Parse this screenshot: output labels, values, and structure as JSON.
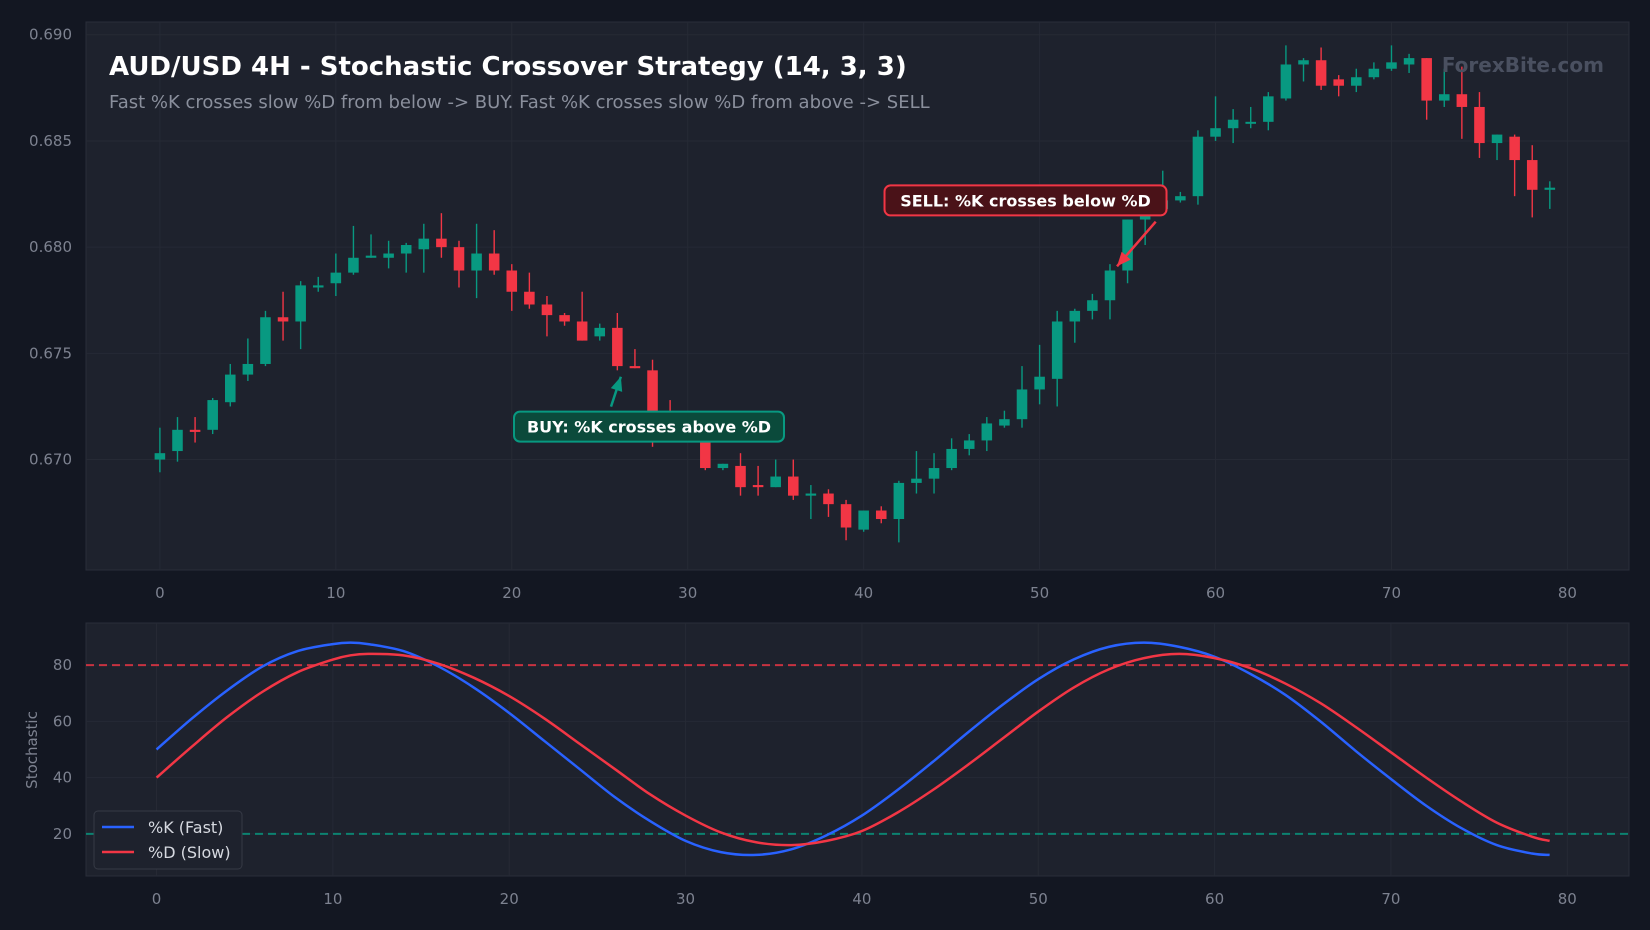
{
  "colors": {
    "background": "#131722",
    "panel": "#1e222d",
    "grid": "#262a35",
    "bullish": "#089981",
    "bearish": "#f23645",
    "k_line": "#2962ff",
    "d_line": "#f23645",
    "overbought": "#f23645",
    "oversold": "#089981"
  },
  "chart_data": [
    {
      "type": "candlestick",
      "title": "AUD/USD 4H - Stochastic Crossover Strategy (14, 3, 3)",
      "subtitle": "Fast %K crosses slow %D from below -> BUY. Fast %K crosses slow %D from above -> SELL",
      "watermark": "ForexBite.com",
      "xlim": [
        -4.2,
        83.5
      ],
      "ylim": [
        0.6648,
        0.6906
      ],
      "xticks": [
        0,
        10,
        20,
        30,
        40,
        50,
        60,
        70,
        80
      ],
      "yticks": [
        0.67,
        0.675,
        0.68,
        0.685,
        0.69
      ],
      "ytick_labels": [
        "0.670",
        "0.675",
        "0.680",
        "0.685",
        "0.690"
      ],
      "grid": true,
      "candles": [
        {
          "o": 0.67,
          "h": 0.6715,
          "l": 0.6694,
          "c": 0.6703
        },
        {
          "o": 0.6704,
          "h": 0.672,
          "l": 0.6699,
          "c": 0.6714
        },
        {
          "o": 0.6714,
          "h": 0.672,
          "l": 0.6708,
          "c": 0.6713
        },
        {
          "o": 0.6714,
          "h": 0.6729,
          "l": 0.6712,
          "c": 0.6728
        },
        {
          "o": 0.6727,
          "h": 0.6745,
          "l": 0.6725,
          "c": 0.674
        },
        {
          "o": 0.674,
          "h": 0.6757,
          "l": 0.6737,
          "c": 0.6745
        },
        {
          "o": 0.6745,
          "h": 0.677,
          "l": 0.6744,
          "c": 0.6767
        },
        {
          "o": 0.6767,
          "h": 0.6779,
          "l": 0.6756,
          "c": 0.6765
        },
        {
          "o": 0.6765,
          "h": 0.6784,
          "l": 0.6752,
          "c": 0.6782
        },
        {
          "o": 0.6781,
          "h": 0.6786,
          "l": 0.6779,
          "c": 0.6782
        },
        {
          "o": 0.6783,
          "h": 0.6797,
          "l": 0.6777,
          "c": 0.6788
        },
        {
          "o": 0.6788,
          "h": 0.681,
          "l": 0.6787,
          "c": 0.6795
        },
        {
          "o": 0.6795,
          "h": 0.6806,
          "l": 0.6795,
          "c": 0.6796
        },
        {
          "o": 0.6795,
          "h": 0.6803,
          "l": 0.679,
          "c": 0.6797
        },
        {
          "o": 0.6797,
          "h": 0.6802,
          "l": 0.6788,
          "c": 0.6801
        },
        {
          "o": 0.6799,
          "h": 0.6811,
          "l": 0.6788,
          "c": 0.6804
        },
        {
          "o": 0.6804,
          "h": 0.6816,
          "l": 0.6795,
          "c": 0.68
        },
        {
          "o": 0.68,
          "h": 0.6803,
          "l": 0.6781,
          "c": 0.6789
        },
        {
          "o": 0.6789,
          "h": 0.6811,
          "l": 0.6776,
          "c": 0.6797
        },
        {
          "o": 0.6797,
          "h": 0.6808,
          "l": 0.6787,
          "c": 0.6789
        },
        {
          "o": 0.6789,
          "h": 0.6792,
          "l": 0.677,
          "c": 0.6779
        },
        {
          "o": 0.6779,
          "h": 0.6788,
          "l": 0.6771,
          "c": 0.6773
        },
        {
          "o": 0.6773,
          "h": 0.6777,
          "l": 0.6758,
          "c": 0.6768
        },
        {
          "o": 0.6768,
          "h": 0.6769,
          "l": 0.6763,
          "c": 0.6765
        },
        {
          "o": 0.6765,
          "h": 0.6779,
          "l": 0.6756,
          "c": 0.6756
        },
        {
          "o": 0.6758,
          "h": 0.6764,
          "l": 0.6756,
          "c": 0.6762
        },
        {
          "o": 0.6762,
          "h": 0.6769,
          "l": 0.6742,
          "c": 0.6744
        },
        {
          "o": 0.6744,
          "h": 0.6752,
          "l": 0.6743,
          "c": 0.6743
        },
        {
          "o": 0.6742,
          "h": 0.6747,
          "l": 0.6706,
          "c": 0.672
        },
        {
          "o": 0.6721,
          "h": 0.6728,
          "l": 0.6719,
          "c": 0.672
        },
        {
          "o": 0.672,
          "h": 0.6721,
          "l": 0.6711,
          "c": 0.6711
        },
        {
          "o": 0.6711,
          "h": 0.6722,
          "l": 0.6695,
          "c": 0.6696
        },
        {
          "o": 0.6696,
          "h": 0.6698,
          "l": 0.6695,
          "c": 0.6698
        },
        {
          "o": 0.6697,
          "h": 0.6703,
          "l": 0.6683,
          "c": 0.6687
        },
        {
          "o": 0.6688,
          "h": 0.6697,
          "l": 0.6683,
          "c": 0.6687
        },
        {
          "o": 0.6687,
          "h": 0.67,
          "l": 0.6687,
          "c": 0.6692
        },
        {
          "o": 0.6692,
          "h": 0.67,
          "l": 0.6681,
          "c": 0.6683
        },
        {
          "o": 0.6683,
          "h": 0.6688,
          "l": 0.6672,
          "c": 0.6684
        },
        {
          "o": 0.6684,
          "h": 0.6686,
          "l": 0.6673,
          "c": 0.6679
        },
        {
          "o": 0.6679,
          "h": 0.6681,
          "l": 0.6662,
          "c": 0.6668
        },
        {
          "o": 0.6667,
          "h": 0.6676,
          "l": 0.6666,
          "c": 0.6676
        },
        {
          "o": 0.6676,
          "h": 0.6678,
          "l": 0.667,
          "c": 0.6672
        },
        {
          "o": 0.6672,
          "h": 0.669,
          "l": 0.6661,
          "c": 0.6689
        },
        {
          "o": 0.6689,
          "h": 0.6704,
          "l": 0.6684,
          "c": 0.6691
        },
        {
          "o": 0.6691,
          "h": 0.6703,
          "l": 0.6684,
          "c": 0.6696
        },
        {
          "o": 0.6696,
          "h": 0.671,
          "l": 0.6695,
          "c": 0.6705
        },
        {
          "o": 0.6705,
          "h": 0.6712,
          "l": 0.6702,
          "c": 0.6709
        },
        {
          "o": 0.6709,
          "h": 0.672,
          "l": 0.6704,
          "c": 0.6717
        },
        {
          "o": 0.6716,
          "h": 0.6723,
          "l": 0.6715,
          "c": 0.6719
        },
        {
          "o": 0.6719,
          "h": 0.6744,
          "l": 0.6715,
          "c": 0.6733
        },
        {
          "o": 0.6733,
          "h": 0.6754,
          "l": 0.6726,
          "c": 0.6739
        },
        {
          "o": 0.6738,
          "h": 0.677,
          "l": 0.6725,
          "c": 0.6765
        },
        {
          "o": 0.6765,
          "h": 0.6771,
          "l": 0.6755,
          "c": 0.677
        },
        {
          "o": 0.677,
          "h": 0.6778,
          "l": 0.6766,
          "c": 0.6775
        },
        {
          "o": 0.6775,
          "h": 0.6792,
          "l": 0.6766,
          "c": 0.6789
        },
        {
          "o": 0.6789,
          "h": 0.6813,
          "l": 0.6783,
          "c": 0.6813
        },
        {
          "o": 0.6813,
          "h": 0.6823,
          "l": 0.6801,
          "c": 0.6819
        },
        {
          "o": 0.6818,
          "h": 0.6836,
          "l": 0.6818,
          "c": 0.6822
        },
        {
          "o": 0.6822,
          "h": 0.6826,
          "l": 0.6821,
          "c": 0.6824
        },
        {
          "o": 0.6824,
          "h": 0.6855,
          "l": 0.682,
          "c": 0.6852
        },
        {
          "o": 0.6852,
          "h": 0.6871,
          "l": 0.685,
          "c": 0.6856
        },
        {
          "o": 0.6856,
          "h": 0.6865,
          "l": 0.6849,
          "c": 0.686
        },
        {
          "o": 0.6859,
          "h": 0.6866,
          "l": 0.6856,
          "c": 0.6859
        },
        {
          "o": 0.6859,
          "h": 0.6873,
          "l": 0.6855,
          "c": 0.6871
        },
        {
          "o": 0.687,
          "h": 0.6895,
          "l": 0.6869,
          "c": 0.6886
        },
        {
          "o": 0.6886,
          "h": 0.6889,
          "l": 0.6878,
          "c": 0.6888
        },
        {
          "o": 0.6888,
          "h": 0.6894,
          "l": 0.6874,
          "c": 0.6876
        },
        {
          "o": 0.6879,
          "h": 0.6881,
          "l": 0.6871,
          "c": 0.6876
        },
        {
          "o": 0.6876,
          "h": 0.6884,
          "l": 0.6873,
          "c": 0.688
        },
        {
          "o": 0.688,
          "h": 0.6887,
          "l": 0.6879,
          "c": 0.6884
        },
        {
          "o": 0.6884,
          "h": 0.6895,
          "l": 0.6883,
          "c": 0.6887
        },
        {
          "o": 0.6886,
          "h": 0.6891,
          "l": 0.6882,
          "c": 0.6889
        },
        {
          "o": 0.6889,
          "h": 0.6889,
          "l": 0.686,
          "c": 0.6869
        },
        {
          "o": 0.6869,
          "h": 0.6884,
          "l": 0.6866,
          "c": 0.6872
        },
        {
          "o": 0.6872,
          "h": 0.6885,
          "l": 0.6851,
          "c": 0.6866
        },
        {
          "o": 0.6866,
          "h": 0.6873,
          "l": 0.6842,
          "c": 0.6849
        },
        {
          "o": 0.6849,
          "h": 0.6853,
          "l": 0.6841,
          "c": 0.6853
        },
        {
          "o": 0.6852,
          "h": 0.6853,
          "l": 0.6824,
          "c": 0.6841
        },
        {
          "o": 0.6841,
          "h": 0.6848,
          "l": 0.6814,
          "c": 0.6827
        },
        {
          "o": 0.6827,
          "h": 0.6831,
          "l": 0.6818,
          "c": 0.6828
        }
      ],
      "annotations": [
        {
          "text": "BUY: %K crosses above %D",
          "kind": "buy",
          "x": 27.8,
          "y": 0.67155,
          "arrow_to": [
            26.2,
            0.6739
          ]
        },
        {
          "text": "SELL: %K crosses below %D",
          "kind": "sell",
          "x": 49.2,
          "y": 0.6822,
          "arrow_to": [
            54.4,
            0.6791
          ],
          "arrow_from": [
            56.6,
            0.6812
          ]
        }
      ]
    },
    {
      "type": "line",
      "ylabel": "Stochastic",
      "xlim": [
        -4,
        83.5
      ],
      "ylim": [
        5,
        95
      ],
      "xticks": [
        0,
        10,
        20,
        30,
        40,
        50,
        60,
        70,
        80
      ],
      "yticks": [
        20,
        40,
        60,
        80
      ],
      "grid": true,
      "hlines": [
        {
          "y": 80,
          "color": "#f23645",
          "style": "dashed"
        },
        {
          "y": 20,
          "color": "#089981",
          "style": "dashed"
        }
      ],
      "x": [
        0,
        2,
        4,
        6,
        8,
        10,
        11,
        12,
        14,
        16,
        18,
        20,
        22,
        24,
        26,
        28,
        30,
        32,
        34,
        36,
        38,
        40,
        42,
        44,
        46,
        48,
        50,
        52,
        54,
        56,
        58,
        60,
        62,
        64,
        66,
        68,
        70,
        72,
        74,
        76,
        78,
        79
      ],
      "series": [
        {
          "name": "%K (Fast)",
          "color": "#2962ff",
          "values": [
            50,
            61,
            71,
            79.5,
            85,
            87.5,
            88,
            87.5,
            85,
            79.5,
            72,
            63,
            53,
            43,
            33,
            24.5,
            17.5,
            13.5,
            12.5,
            14.5,
            19.5,
            26.5,
            35.5,
            45.5,
            56,
            66,
            75,
            82,
            86.5,
            88,
            86.5,
            83,
            77,
            69.5,
            60,
            49.5,
            39.5,
            30,
            22,
            16,
            13,
            12.5
          ]
        },
        {
          "name": "%D (Slow)",
          "color": "#f23645",
          "values": [
            40,
            51,
            61.5,
            70.5,
            77.5,
            82,
            83.5,
            84,
            83.5,
            80.5,
            75.5,
            69,
            61,
            52,
            43,
            34,
            26.5,
            20.5,
            17,
            16,
            17.5,
            21,
            27.5,
            35.5,
            44.5,
            54,
            63.5,
            72,
            78.5,
            82.5,
            84,
            82.5,
            79,
            73.5,
            66.5,
            58,
            49,
            40,
            31.5,
            24,
            19,
            17.5
          ]
        }
      ],
      "legend": "lower-left"
    }
  ]
}
